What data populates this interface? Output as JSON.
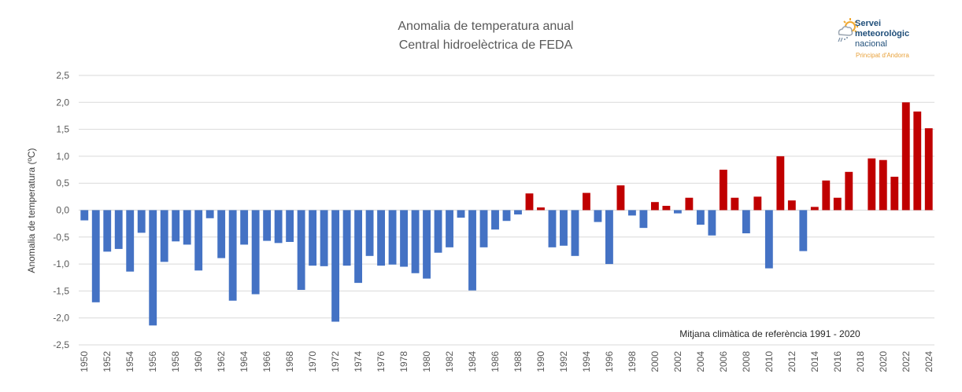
{
  "chart_data": {
    "type": "bar",
    "title": "Anomalia de temperatura anual",
    "subtitle": "Central hidroelèctrica de FEDA",
    "xlabel": "",
    "ylabel": "Anomalia de temperatura (ºC)",
    "ylim": [
      -2.5,
      2.5
    ],
    "yticks": [
      "2,5",
      "2,0",
      "1,5",
      "1,0",
      "0,5",
      "0,0",
      "-0,5",
      "-1,0",
      "-1,5",
      "-2,0",
      "-2,5"
    ],
    "ytick_values": [
      2.5,
      2.0,
      1.5,
      1.0,
      0.5,
      0.0,
      -0.5,
      -1.0,
      -1.5,
      -2.0,
      -2.5
    ],
    "grid": true,
    "annotation": "Mitjana climàtica de referència 1991 - 2020",
    "colors": {
      "positive": "#c00000",
      "negative": "#4472c4",
      "grid": "#d9d9d9"
    },
    "categories": [
      1950,
      1951,
      1952,
      1953,
      1954,
      1955,
      1956,
      1957,
      1958,
      1959,
      1960,
      1961,
      1962,
      1963,
      1964,
      1965,
      1966,
      1967,
      1968,
      1969,
      1970,
      1971,
      1972,
      1973,
      1974,
      1975,
      1976,
      1977,
      1978,
      1979,
      1980,
      1981,
      1982,
      1983,
      1984,
      1985,
      1986,
      1987,
      1988,
      1989,
      1990,
      1991,
      1992,
      1993,
      1994,
      1995,
      1996,
      1997,
      1998,
      1999,
      2000,
      2001,
      2002,
      2003,
      2004,
      2005,
      2006,
      2007,
      2008,
      2009,
      2010,
      2011,
      2012,
      2013,
      2014,
      2015,
      2016,
      2017,
      2018,
      2019,
      2020,
      2021,
      2022,
      2023,
      2024
    ],
    "values": [
      -0.19,
      -1.71,
      -0.77,
      -0.72,
      -1.14,
      -0.42,
      -2.14,
      -0.96,
      -0.58,
      -0.64,
      -1.12,
      -0.15,
      -0.89,
      -1.68,
      -0.64,
      -1.56,
      -0.57,
      -0.61,
      -0.59,
      -1.48,
      -1.03,
      -1.04,
      -2.07,
      -1.03,
      -1.35,
      -0.85,
      -1.03,
      -1.01,
      -1.05,
      -1.17,
      -1.27,
      -0.79,
      -0.69,
      -0.14,
      -1.49,
      -0.69,
      -0.36,
      -0.2,
      -0.08,
      0.31,
      0.05,
      -0.69,
      -0.66,
      -0.85,
      0.32,
      -0.22,
      -1.0,
      0.46,
      -0.1,
      -0.33,
      0.15,
      0.08,
      -0.06,
      0.23,
      -0.27,
      -0.47,
      0.75,
      0.23,
      -0.43,
      0.25,
      -1.08,
      1.0,
      0.18,
      -0.76,
      0.06,
      0.55,
      0.23,
      0.71,
      0.0,
      0.96,
      0.93,
      0.62,
      2.0,
      1.83,
      1.52
    ],
    "xtick_labels": [
      "1950",
      "1952",
      "1954",
      "1956",
      "1958",
      "1960",
      "1962",
      "1964",
      "1966",
      "1968",
      "1970",
      "1972",
      "1974",
      "1976",
      "1978",
      "1980",
      "1982",
      "1984",
      "1986",
      "1988",
      "1990",
      "1992",
      "1994",
      "1996",
      "1998",
      "2000",
      "2002",
      "2004",
      "2006",
      "2008",
      "2010",
      "2012",
      "2014",
      "2016",
      "2018",
      "2020",
      "2022",
      "2024"
    ]
  },
  "logo": {
    "line1": "Servei",
    "line2": "meteorològic",
    "line3": "nacional",
    "sub": "Principat d'Andorra"
  }
}
